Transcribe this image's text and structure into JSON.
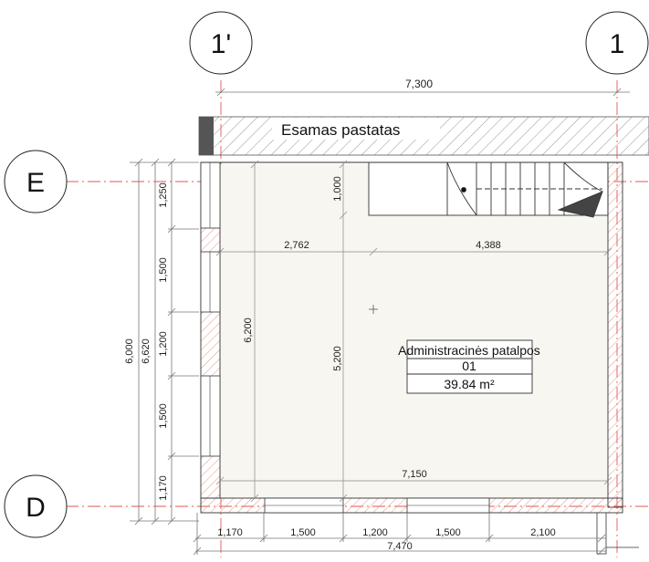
{
  "grid_labels": {
    "col_left": "1'",
    "col_right": "1",
    "row_top": "E",
    "row_bottom": "D"
  },
  "existing_building": "Esamas pastatas",
  "dimensions": {
    "top_overall": "7,300",
    "bottom_overall": "7,470",
    "bottom_segments": [
      "1,170",
      "1,500",
      "1,200",
      "1,500",
      "2,100"
    ],
    "left_segments": [
      "1,250",
      "1,500",
      "1,200",
      "1,500",
      "1,170"
    ],
    "left_overall_inner": "6,000",
    "left_overall_outer": "6,620",
    "interior_left_vertical": "6,200",
    "interior_mid_vertical": "5,200",
    "interior_top_vertical": "1,000",
    "interior_horizontal_left": "2,762",
    "interior_horizontal_right": "4,388",
    "interior_bottom": "7,150"
  },
  "room": {
    "name": "Administracinės patalpos",
    "number": "01",
    "area": "39.84 m²"
  },
  "colors": {
    "line": "#3a3a3a",
    "dim_line": "#8a8a8a",
    "grid_line": "#e05a50",
    "hatch_red": "#e07a70",
    "room_fill": "#f8f6f0",
    "hatch_grey": "#777777"
  }
}
